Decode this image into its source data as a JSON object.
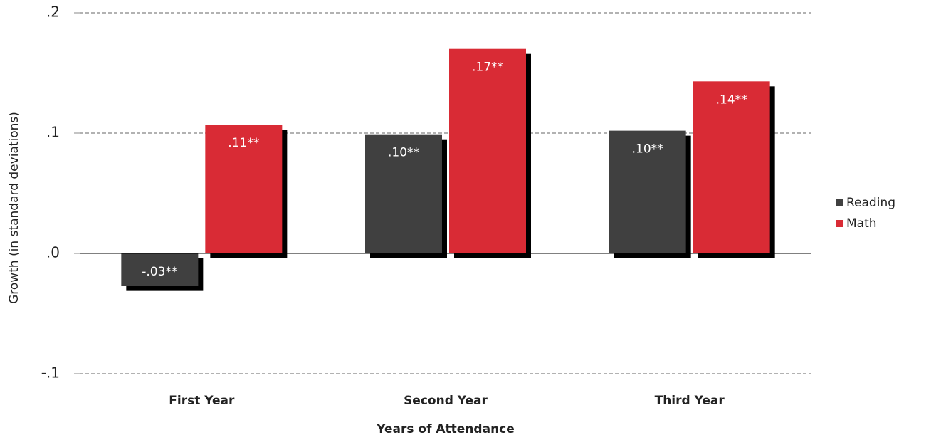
{
  "chart_data": {
    "type": "bar",
    "categories": [
      "First Year",
      "Second Year",
      "Third Year"
    ],
    "series": [
      {
        "name": "Reading",
        "color": "#404040",
        "values": [
          -0.027,
          0.099,
          0.102
        ],
        "value_labels": [
          "-.03**",
          ".10**",
          ".10**"
        ]
      },
      {
        "name": "Math",
        "color": "#d92b35",
        "values": [
          0.107,
          0.17,
          0.143
        ],
        "value_labels": [
          ".11**",
          ".17**",
          ".14**"
        ]
      }
    ],
    "ylim": [
      -0.1,
      0.2
    ],
    "yticks": [
      {
        "value": -0.1,
        "label": "-.1"
      },
      {
        "value": 0,
        "label": ".0"
      },
      {
        "value": 0.1,
        "label": ".1"
      },
      {
        "value": 0.2,
        "label": ".2"
      }
    ],
    "ylabel": "Growth (in standard deviations)",
    "xlabel": "Years of Attendance",
    "grid": true,
    "legend": "right"
  }
}
